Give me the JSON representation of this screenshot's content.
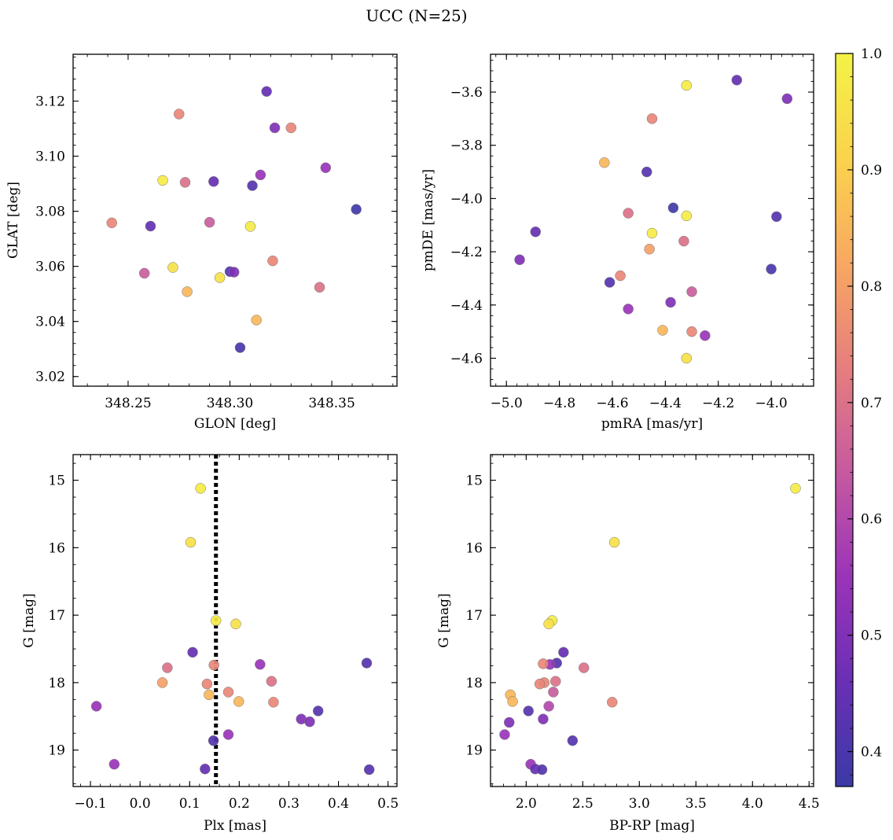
{
  "figure_title": "UCC (N=25)",
  "colormap": "plasma",
  "colormap_stops": [
    "#3b3aa6",
    "#6a2fb5",
    "#9a34b8",
    "#c65aa0",
    "#e57e7e",
    "#f8a862",
    "#fbd34c",
    "#f3f345"
  ],
  "marker_edge_color": "#777777",
  "reference_line_color": "#000000",
  "colorbar": {
    "range": [
      0.37,
      1.0
    ],
    "ticks": [
      0.4,
      0.5,
      0.6,
      0.7,
      0.8,
      0.9,
      1.0
    ],
    "tick_labels": [
      "0.4",
      "0.5",
      "0.6",
      "0.7",
      "0.8",
      "0.9",
      "1.0"
    ]
  },
  "chart_data": [
    {
      "type": "scatter",
      "xlabel": "GLON [deg]",
      "ylabel": "GLAT [deg]",
      "xlim": [
        348.223,
        348.382
      ],
      "ylim": [
        3.0165,
        3.137
      ],
      "xticks": [
        348.25,
        348.3,
        348.35
      ],
      "xtick_labels": [
        "348.25",
        "348.30",
        "348.35"
      ],
      "yticks": [
        3.02,
        3.04,
        3.06,
        3.08,
        3.1,
        3.12
      ],
      "ytick_labels": [
        "3.02",
        "3.04",
        "3.06",
        "3.08",
        "3.10",
        "3.12"
      ],
      "points": [
        {
          "x": 348.318,
          "y": 3.1235,
          "c": 0.45
        },
        {
          "x": 348.275,
          "y": 3.1153,
          "c": 0.75
        },
        {
          "x": 348.322,
          "y": 3.1103,
          "c": 0.5
        },
        {
          "x": 348.33,
          "y": 3.1103,
          "c": 0.75
        },
        {
          "x": 348.347,
          "y": 3.0958,
          "c": 0.55
        },
        {
          "x": 348.315,
          "y": 3.0932,
          "c": 0.55
        },
        {
          "x": 348.267,
          "y": 3.0912,
          "c": 0.98
        },
        {
          "x": 348.278,
          "y": 3.0905,
          "c": 0.7
        },
        {
          "x": 348.292,
          "y": 3.0908,
          "c": 0.45
        },
        {
          "x": 348.311,
          "y": 3.0893,
          "c": 0.42
        },
        {
          "x": 348.362,
          "y": 3.0807,
          "c": 0.38
        },
        {
          "x": 348.242,
          "y": 3.0758,
          "c": 0.75
        },
        {
          "x": 348.29,
          "y": 3.076,
          "c": 0.65
        },
        {
          "x": 348.261,
          "y": 3.0746,
          "c": 0.45
        },
        {
          "x": 348.31,
          "y": 3.0745,
          "c": 0.98
        },
        {
          "x": 348.321,
          "y": 3.062,
          "c": 0.75
        },
        {
          "x": 348.272,
          "y": 3.0596,
          "c": 0.95
        },
        {
          "x": 348.3,
          "y": 3.0581,
          "c": 0.42
        },
        {
          "x": 348.302,
          "y": 3.0579,
          "c": 0.5
        },
        {
          "x": 348.258,
          "y": 3.0575,
          "c": 0.65
        },
        {
          "x": 348.295,
          "y": 3.0559,
          "c": 0.95
        },
        {
          "x": 348.344,
          "y": 3.0524,
          "c": 0.7
        },
        {
          "x": 348.279,
          "y": 3.0508,
          "c": 0.85
        },
        {
          "x": 348.313,
          "y": 3.0405,
          "c": 0.85
        },
        {
          "x": 348.305,
          "y": 3.0305,
          "c": 0.4
        }
      ]
    },
    {
      "type": "scatter",
      "xlabel": "pmRA [mas/yr]",
      "ylabel": "pmDE [mas/yr]",
      "xlim": [
        -5.06,
        -3.84
      ],
      "ylim": [
        -4.705,
        -3.458
      ],
      "xticks": [
        -5.0,
        -4.8,
        -4.6,
        -4.4,
        -4.2,
        -4.0
      ],
      "xtick_labels": [
        "−5.0",
        "−4.8",
        "−4.6",
        "−4.4",
        "−4.2",
        "−4.0"
      ],
      "yticks": [
        -4.6,
        -4.4,
        -4.2,
        -4.0,
        -3.8,
        -3.6
      ],
      "ytick_labels": [
        "−4.6",
        "−4.4",
        "−4.2",
        "−4.0",
        "−3.8",
        "−3.6"
      ],
      "points": [
        {
          "x": -4.13,
          "y": -3.555,
          "c": 0.45
        },
        {
          "x": -3.94,
          "y": -3.625,
          "c": 0.5
        },
        {
          "x": -4.32,
          "y": -3.575,
          "c": 0.98
        },
        {
          "x": -4.45,
          "y": -3.7,
          "c": 0.75
        },
        {
          "x": -4.63,
          "y": -3.865,
          "c": 0.85
        },
        {
          "x": -4.47,
          "y": -3.9,
          "c": 0.42
        },
        {
          "x": -4.37,
          "y": -4.035,
          "c": 0.38
        },
        {
          "x": -4.54,
          "y": -4.055,
          "c": 0.7
        },
        {
          "x": -4.32,
          "y": -4.065,
          "c": 0.98
        },
        {
          "x": -3.98,
          "y": -4.068,
          "c": 0.42
        },
        {
          "x": -4.89,
          "y": -4.125,
          "c": 0.45
        },
        {
          "x": -4.45,
          "y": -4.13,
          "c": 0.98
        },
        {
          "x": -4.33,
          "y": -4.16,
          "c": 0.7
        },
        {
          "x": -4.46,
          "y": -4.19,
          "c": 0.8
        },
        {
          "x": -4.95,
          "y": -4.23,
          "c": 0.5
        },
        {
          "x": -4.0,
          "y": -4.265,
          "c": 0.4
        },
        {
          "x": -4.57,
          "y": -4.29,
          "c": 0.75
        },
        {
          "x": -4.61,
          "y": -4.315,
          "c": 0.42
        },
        {
          "x": -4.3,
          "y": -4.35,
          "c": 0.65
        },
        {
          "x": -4.38,
          "y": -4.39,
          "c": 0.5
        },
        {
          "x": -4.54,
          "y": -4.415,
          "c": 0.55
        },
        {
          "x": -4.41,
          "y": -4.495,
          "c": 0.85
        },
        {
          "x": -4.3,
          "y": -4.5,
          "c": 0.75
        },
        {
          "x": -4.25,
          "y": -4.515,
          "c": 0.55
        },
        {
          "x": -4.32,
          "y": -4.6,
          "c": 0.95
        }
      ]
    },
    {
      "type": "scatter",
      "xlabel": "Plx [mas]",
      "ylabel": "G [mag]",
      "xlim": [
        -0.135,
        0.518
      ],
      "ylim": [
        19.54,
        14.62
      ],
      "y_inverted": true,
      "vline": 0.153,
      "xticks": [
        -0.1,
        0.0,
        0.1,
        0.2,
        0.3,
        0.4,
        0.5
      ],
      "xtick_labels": [
        "−0.1",
        "0.0",
        "0.1",
        "0.2",
        "0.3",
        "0.4",
        "0.5"
      ],
      "yticks": [
        15,
        16,
        17,
        18,
        19
      ],
      "ytick_labels": [
        "15",
        "16",
        "17",
        "18",
        "19"
      ],
      "points": [
        {
          "x": 0.122,
          "y": 15.12,
          "c": 0.98
        },
        {
          "x": 0.102,
          "y": 15.92,
          "c": 0.95
        },
        {
          "x": 0.153,
          "y": 17.08,
          "c": 0.98
        },
        {
          "x": 0.193,
          "y": 17.13,
          "c": 0.95
        },
        {
          "x": 0.106,
          "y": 17.55,
          "c": 0.45
        },
        {
          "x": 0.242,
          "y": 17.73,
          "c": 0.55
        },
        {
          "x": 0.149,
          "y": 17.74,
          "c": 0.75
        },
        {
          "x": 0.457,
          "y": 17.71,
          "c": 0.42
        },
        {
          "x": 0.055,
          "y": 17.78,
          "c": 0.7
        },
        {
          "x": 0.265,
          "y": 17.98,
          "c": 0.7
        },
        {
          "x": 0.045,
          "y": 18.0,
          "c": 0.8
        },
        {
          "x": 0.135,
          "y": 18.02,
          "c": 0.75
        },
        {
          "x": 0.178,
          "y": 18.14,
          "c": 0.75
        },
        {
          "x": 0.139,
          "y": 18.18,
          "c": 0.85
        },
        {
          "x": 0.199,
          "y": 18.28,
          "c": 0.85
        },
        {
          "x": 0.269,
          "y": 18.29,
          "c": 0.75
        },
        {
          "x": -0.088,
          "y": 18.35,
          "c": 0.55
        },
        {
          "x": 0.359,
          "y": 18.42,
          "c": 0.42
        },
        {
          "x": 0.325,
          "y": 18.54,
          "c": 0.5
        },
        {
          "x": 0.342,
          "y": 18.58,
          "c": 0.5
        },
        {
          "x": 0.178,
          "y": 18.77,
          "c": 0.55
        },
        {
          "x": 0.148,
          "y": 18.86,
          "c": 0.42
        },
        {
          "x": -0.052,
          "y": 19.21,
          "c": 0.55
        },
        {
          "x": 0.131,
          "y": 19.28,
          "c": 0.45
        },
        {
          "x": 0.462,
          "y": 19.29,
          "c": 0.42
        }
      ]
    },
    {
      "type": "scatter",
      "xlabel": "BP-RP [mag]",
      "ylabel": "G [mag]",
      "xlim": [
        1.685,
        4.54
      ],
      "ylim": [
        19.54,
        14.62
      ],
      "y_inverted": true,
      "xticks": [
        2.0,
        2.5,
        3.0,
        3.5,
        4.0,
        4.5
      ],
      "xtick_labels": [
        "2.0",
        "2.5",
        "3.0",
        "3.5",
        "4.0",
        "4.5"
      ],
      "yticks": [
        15,
        16,
        17,
        18,
        19
      ],
      "ytick_labels": [
        "15",
        "16",
        "17",
        "18",
        "19"
      ],
      "points": [
        {
          "x": 4.38,
          "y": 15.12,
          "c": 0.98
        },
        {
          "x": 2.78,
          "y": 15.92,
          "c": 0.95
        },
        {
          "x": 2.23,
          "y": 17.08,
          "c": 0.98
        },
        {
          "x": 2.2,
          "y": 17.13,
          "c": 0.95
        },
        {
          "x": 2.33,
          "y": 17.55,
          "c": 0.45
        },
        {
          "x": 2.27,
          "y": 17.71,
          "c": 0.42
        },
        {
          "x": 2.21,
          "y": 17.73,
          "c": 0.55
        },
        {
          "x": 2.15,
          "y": 17.72,
          "c": 0.75
        },
        {
          "x": 2.51,
          "y": 17.78,
          "c": 0.7
        },
        {
          "x": 2.26,
          "y": 17.98,
          "c": 0.7
        },
        {
          "x": 2.16,
          "y": 18.0,
          "c": 0.75
        },
        {
          "x": 2.12,
          "y": 18.02,
          "c": 0.75
        },
        {
          "x": 2.24,
          "y": 18.14,
          "c": 0.65
        },
        {
          "x": 1.86,
          "y": 18.18,
          "c": 0.85
        },
        {
          "x": 1.88,
          "y": 18.28,
          "c": 0.85
        },
        {
          "x": 2.76,
          "y": 18.29,
          "c": 0.75
        },
        {
          "x": 2.2,
          "y": 18.35,
          "c": 0.6
        },
        {
          "x": 2.02,
          "y": 18.42,
          "c": 0.42
        },
        {
          "x": 2.15,
          "y": 18.54,
          "c": 0.5
        },
        {
          "x": 1.85,
          "y": 18.59,
          "c": 0.5
        },
        {
          "x": 1.81,
          "y": 18.77,
          "c": 0.55
        },
        {
          "x": 2.41,
          "y": 18.86,
          "c": 0.42
        },
        {
          "x": 2.04,
          "y": 19.21,
          "c": 0.55
        },
        {
          "x": 2.08,
          "y": 19.28,
          "c": 0.45
        },
        {
          "x": 2.14,
          "y": 19.29,
          "c": 0.42
        }
      ]
    }
  ]
}
